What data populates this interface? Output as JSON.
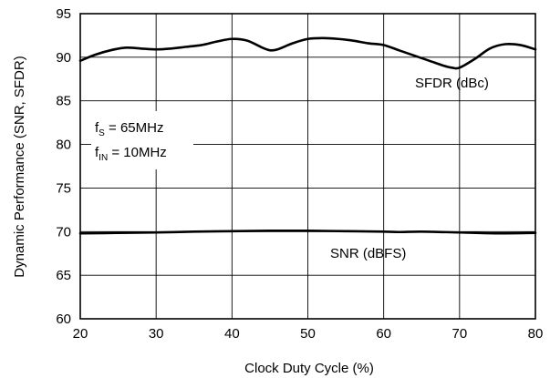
{
  "chart_data": {
    "type": "line",
    "xlabel": "Clock Duty Cycle (%)",
    "ylabel": "Dynamic Performance (SNR, SFDR)",
    "xlim": [
      20,
      80
    ],
    "ylim": [
      60,
      95
    ],
    "x_ticks": [
      "20",
      "30",
      "40",
      "50",
      "60",
      "70",
      "80"
    ],
    "y_ticks": [
      "60",
      "65",
      "70",
      "75",
      "80",
      "85",
      "90",
      "95"
    ],
    "grid": true,
    "annotation": {
      "fs_base": "f",
      "fs_sub": "S",
      "fs_value": " = 65MHz",
      "fin_base": "f",
      "fin_sub": "IN",
      "fin_value": " = 10MHz"
    },
    "series": [
      {
        "name": "SFDR (dBc)",
        "x": [
          20,
          22,
          24,
          26,
          28,
          30,
          32,
          34,
          36,
          38,
          40,
          42,
          44,
          45,
          46,
          48,
          50,
          52,
          54,
          56,
          58,
          60,
          62,
          64,
          66,
          68,
          69,
          70,
          72,
          74,
          76,
          78,
          80
        ],
        "y": [
          89.6,
          90.3,
          90.8,
          91.1,
          91.0,
          90.9,
          91.0,
          91.2,
          91.4,
          91.8,
          92.1,
          91.9,
          91.1,
          90.8,
          90.9,
          91.6,
          92.1,
          92.2,
          92.1,
          91.9,
          91.6,
          91.4,
          90.8,
          90.2,
          89.6,
          89.0,
          88.8,
          88.8,
          89.8,
          91.0,
          91.5,
          91.4,
          90.9
        ]
      },
      {
        "name": "SNR (dBFS)",
        "x": [
          20,
          25,
          30,
          35,
          40,
          45,
          50,
          55,
          60,
          62,
          65,
          70,
          75,
          80
        ],
        "y": [
          69.8,
          69.85,
          69.9,
          70.0,
          70.05,
          70.1,
          70.1,
          70.05,
          70.0,
          69.95,
          70.0,
          69.9,
          69.8,
          69.85
        ]
      }
    ]
  }
}
